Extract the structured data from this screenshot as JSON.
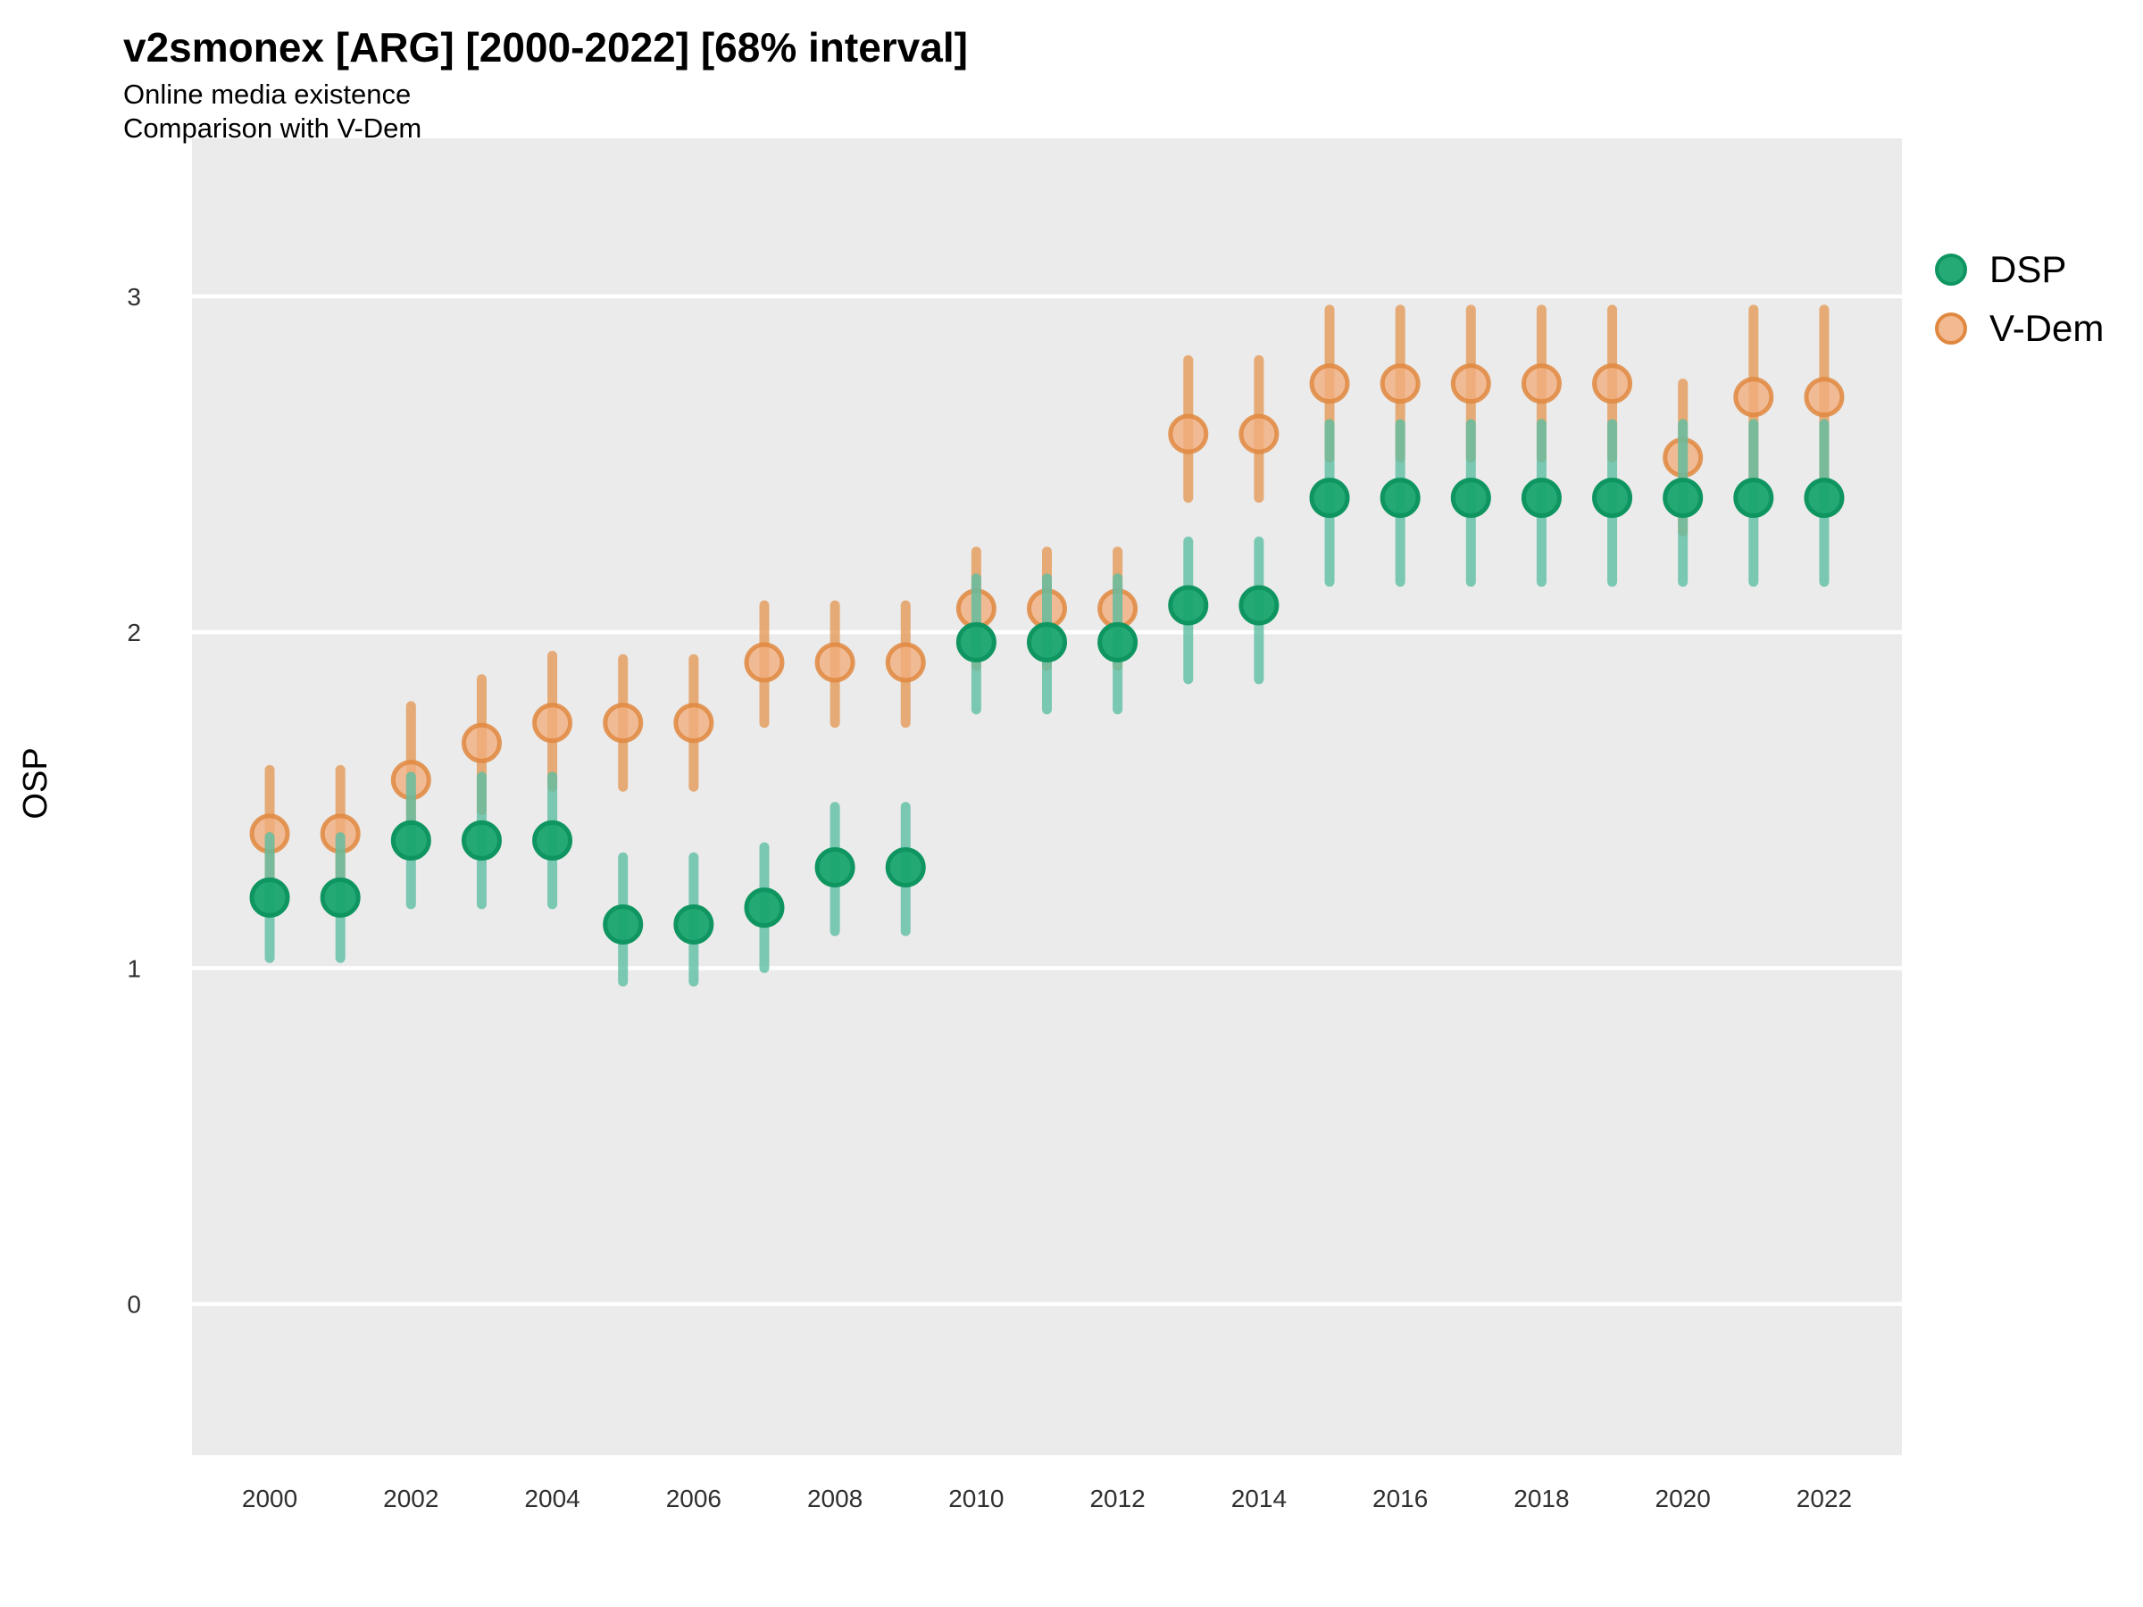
{
  "header": {
    "title": "v2smonex [ARG] [2000-2022] [68% interval]",
    "subtitle1": "Online media existence",
    "subtitle2": "Comparison with V-Dem"
  },
  "chart_data": {
    "type": "scatter",
    "title": "v2smonex [ARG] [2000-2022] [68% interval]",
    "subtitle": [
      "Online media existence",
      "Comparison with V-Dem"
    ],
    "xlabel": "",
    "ylabel": "OSP",
    "interval_label": "68% interval",
    "grid": "major-horizontal-white-on-gray",
    "legend_position": "right-top",
    "x_ticks": [
      2000,
      2002,
      2004,
      2006,
      2008,
      2010,
      2012,
      2014,
      2016,
      2018,
      2020,
      2022
    ],
    "y_ticks": [
      0,
      1,
      2,
      3
    ],
    "xlim": [
      1998.9,
      2023.1
    ],
    "ylim": [
      -0.45,
      3.47
    ],
    "series": [
      {
        "name": "V-Dem",
        "dot_fill": "#f1ae7e",
        "dot_stroke": "#e0883f",
        "bar_color": "#e49a58",
        "points": [
          {
            "year": 2000,
            "mean": 1.4,
            "lo": 1.21,
            "hi": 1.59
          },
          {
            "year": 2001,
            "mean": 1.4,
            "lo": 1.21,
            "hi": 1.59
          },
          {
            "year": 2002,
            "mean": 1.56,
            "lo": 1.35,
            "hi": 1.78
          },
          {
            "year": 2003,
            "mean": 1.67,
            "lo": 1.47,
            "hi": 1.86
          },
          {
            "year": 2004,
            "mean": 1.73,
            "lo": 1.54,
            "hi": 1.93
          },
          {
            "year": 2005,
            "mean": 1.73,
            "lo": 1.54,
            "hi": 1.92
          },
          {
            "year": 2006,
            "mean": 1.73,
            "lo": 1.54,
            "hi": 1.92
          },
          {
            "year": 2007,
            "mean": 1.91,
            "lo": 1.73,
            "hi": 2.08
          },
          {
            "year": 2008,
            "mean": 1.91,
            "lo": 1.73,
            "hi": 2.08
          },
          {
            "year": 2009,
            "mean": 1.91,
            "lo": 1.73,
            "hi": 2.08
          },
          {
            "year": 2010,
            "mean": 2.07,
            "lo": 1.9,
            "hi": 2.24
          },
          {
            "year": 2011,
            "mean": 2.07,
            "lo": 1.9,
            "hi": 2.24
          },
          {
            "year": 2012,
            "mean": 2.07,
            "lo": 1.9,
            "hi": 2.24
          },
          {
            "year": 2013,
            "mean": 2.59,
            "lo": 2.4,
            "hi": 2.81
          },
          {
            "year": 2014,
            "mean": 2.59,
            "lo": 2.4,
            "hi": 2.81
          },
          {
            "year": 2015,
            "mean": 2.74,
            "lo": 2.52,
            "hi": 2.96
          },
          {
            "year": 2016,
            "mean": 2.74,
            "lo": 2.52,
            "hi": 2.96
          },
          {
            "year": 2017,
            "mean": 2.74,
            "lo": 2.52,
            "hi": 2.96
          },
          {
            "year": 2018,
            "mean": 2.74,
            "lo": 2.52,
            "hi": 2.96
          },
          {
            "year": 2019,
            "mean": 2.74,
            "lo": 2.52,
            "hi": 2.96
          },
          {
            "year": 2020,
            "mean": 2.52,
            "lo": 2.3,
            "hi": 2.74
          },
          {
            "year": 2021,
            "mean": 2.7,
            "lo": 2.45,
            "hi": 2.96
          },
          {
            "year": 2022,
            "mean": 2.7,
            "lo": 2.45,
            "hi": 2.96
          }
        ]
      },
      {
        "name": "DSP",
        "dot_fill": "#1aa56e",
        "dot_stroke": "#0e9560",
        "bar_color": "#5ebfa4",
        "points": [
          {
            "year": 2000,
            "mean": 1.21,
            "lo": 1.03,
            "hi": 1.39
          },
          {
            "year": 2001,
            "mean": 1.21,
            "lo": 1.03,
            "hi": 1.39
          },
          {
            "year": 2002,
            "mean": 1.38,
            "lo": 1.19,
            "hi": 1.57
          },
          {
            "year": 2003,
            "mean": 1.38,
            "lo": 1.19,
            "hi": 1.57
          },
          {
            "year": 2004,
            "mean": 1.38,
            "lo": 1.19,
            "hi": 1.57
          },
          {
            "year": 2005,
            "mean": 1.13,
            "lo": 0.96,
            "hi": 1.33
          },
          {
            "year": 2006,
            "mean": 1.13,
            "lo": 0.96,
            "hi": 1.33
          },
          {
            "year": 2007,
            "mean": 1.18,
            "lo": 1.0,
            "hi": 1.36
          },
          {
            "year": 2008,
            "mean": 1.3,
            "lo": 1.11,
            "hi": 1.48
          },
          {
            "year": 2009,
            "mean": 1.3,
            "lo": 1.11,
            "hi": 1.48
          },
          {
            "year": 2010,
            "mean": 1.97,
            "lo": 1.77,
            "hi": 2.16
          },
          {
            "year": 2011,
            "mean": 1.97,
            "lo": 1.77,
            "hi": 2.16
          },
          {
            "year": 2012,
            "mean": 1.97,
            "lo": 1.77,
            "hi": 2.16
          },
          {
            "year": 2013,
            "mean": 2.08,
            "lo": 1.86,
            "hi": 2.27
          },
          {
            "year": 2014,
            "mean": 2.08,
            "lo": 1.86,
            "hi": 2.27
          },
          {
            "year": 2015,
            "mean": 2.4,
            "lo": 2.15,
            "hi": 2.62
          },
          {
            "year": 2016,
            "mean": 2.4,
            "lo": 2.15,
            "hi": 2.62
          },
          {
            "year": 2017,
            "mean": 2.4,
            "lo": 2.15,
            "hi": 2.62
          },
          {
            "year": 2018,
            "mean": 2.4,
            "lo": 2.15,
            "hi": 2.62
          },
          {
            "year": 2019,
            "mean": 2.4,
            "lo": 2.15,
            "hi": 2.62
          },
          {
            "year": 2020,
            "mean": 2.4,
            "lo": 2.15,
            "hi": 2.62
          },
          {
            "year": 2021,
            "mean": 2.4,
            "lo": 2.15,
            "hi": 2.62
          },
          {
            "year": 2022,
            "mean": 2.4,
            "lo": 2.15,
            "hi": 2.62
          }
        ]
      }
    ],
    "legend": [
      {
        "label": "DSP",
        "dot_fill": "#1aa56e",
        "dot_stroke": "#0e9560"
      },
      {
        "label": "V-Dem",
        "dot_fill": "#f1ae7e",
        "dot_stroke": "#e0883f"
      }
    ]
  },
  "colors": {
    "panel_background": "#ebebeb",
    "gridline": "#ffffff",
    "tick_text": "#303030",
    "axis_title_text": "#000000"
  }
}
